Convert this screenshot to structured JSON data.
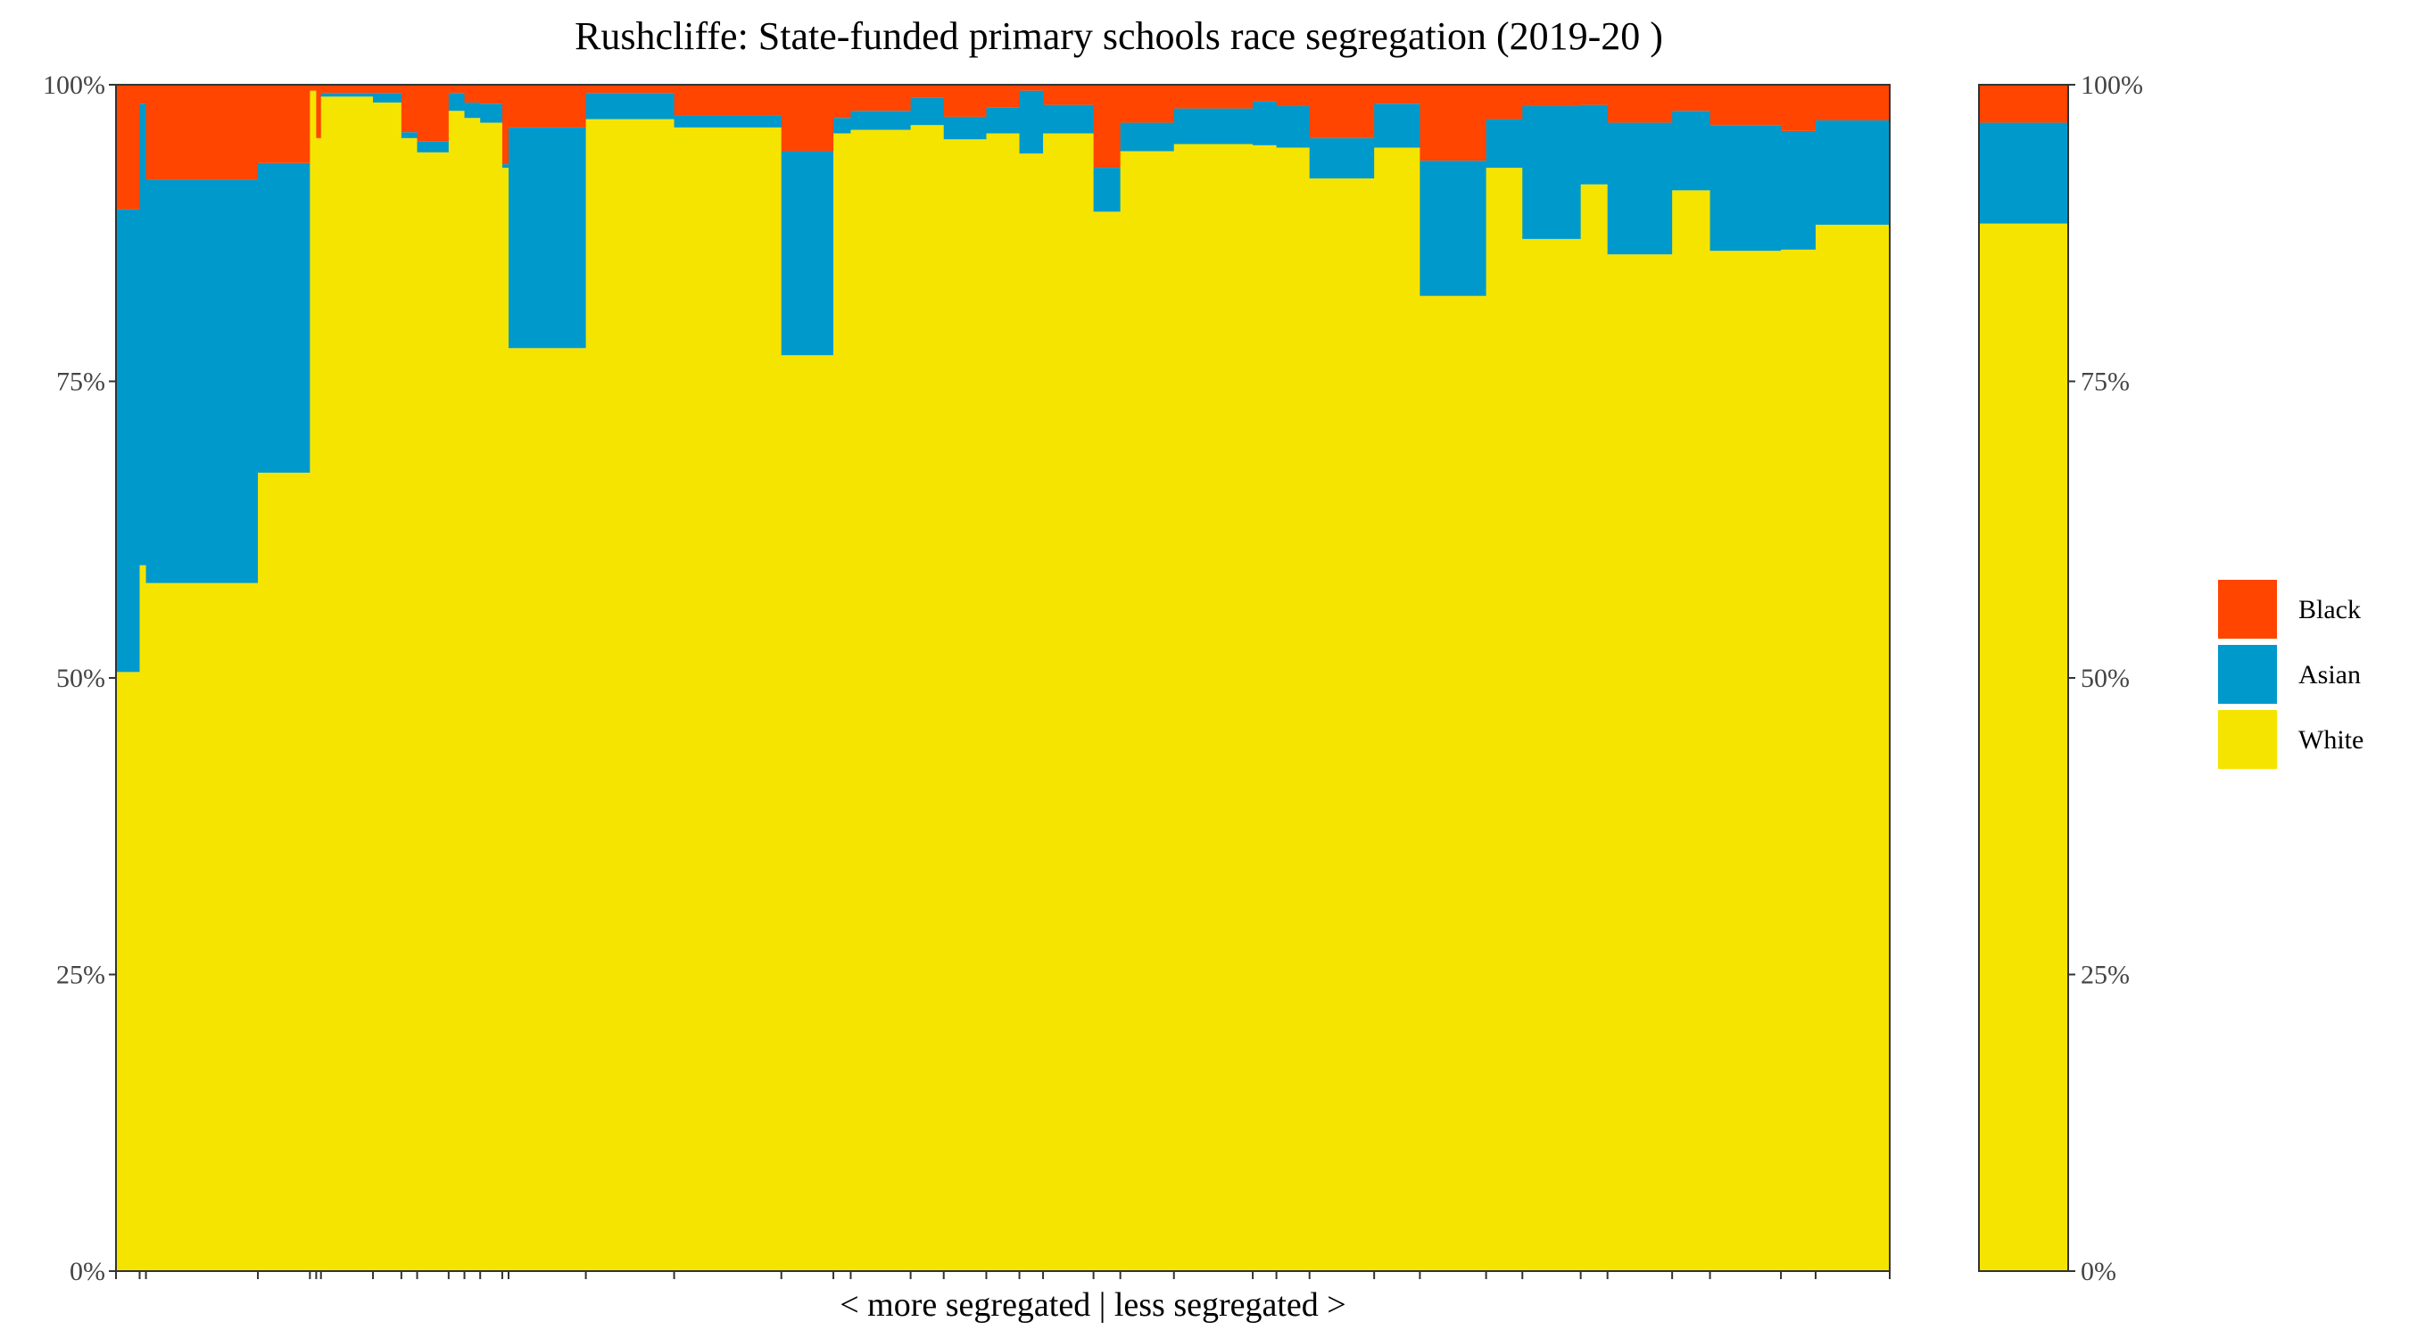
{
  "chart_data": {
    "type": "bar",
    "subtype": "stacked-100-variable-width",
    "title": "Rushcliffe: State-funded primary schools race segregation (2019-20 )",
    "xlabel": "< more segregated | less segregated >",
    "ylabel": "",
    "ylim": [
      0,
      100
    ],
    "y_ticks": [
      "0%",
      "25%",
      "50%",
      "75%",
      "100%"
    ],
    "grid": false,
    "legend_position": "right",
    "colors": {
      "White": "#F5E400",
      "Asian": "#0099CC",
      "Black": "#FF4500"
    },
    "legend": [
      {
        "name": "Black",
        "color": "#FF4500"
      },
      {
        "name": "Asian",
        "color": "#0099CC"
      },
      {
        "name": "White",
        "color": "#F5E400"
      }
    ],
    "series_order": [
      "White",
      "Asian",
      "Black"
    ],
    "schools": [
      {
        "width": 15,
        "white": 50.5,
        "asian": 39.0,
        "black": 10.5
      },
      {
        "width": 4,
        "white": 59.5,
        "asian": 38.9,
        "black": 1.6
      },
      {
        "width": 71,
        "white": 58.0,
        "asian": 34.0,
        "black": 8.0
      },
      {
        "width": 33,
        "white": 67.3,
        "asian": 26.1,
        "black": 6.6
      },
      {
        "width": 4,
        "white": 99.5,
        "asian": 0.0,
        "black": 0.5
      },
      {
        "width": 3,
        "white": 95.5,
        "asian": 0.0,
        "black": 4.5
      },
      {
        "width": 33,
        "white": 99.0,
        "asian": 0.3,
        "black": 0.7
      },
      {
        "width": 18,
        "white": 98.5,
        "asian": 0.8,
        "black": 0.7
      },
      {
        "width": 10,
        "white": 95.5,
        "asian": 0.5,
        "black": 4.0
      },
      {
        "width": 20,
        "white": 94.3,
        "asian": 0.9,
        "black": 4.8
      },
      {
        "width": 10,
        "white": 97.8,
        "asian": 1.5,
        "black": 0.7
      },
      {
        "width": 10,
        "white": 97.2,
        "asian": 1.3,
        "black": 1.5
      },
      {
        "width": 14,
        "white": 96.8,
        "asian": 1.6,
        "black": 1.6
      },
      {
        "width": 4,
        "white": 93.0,
        "asian": 0.3,
        "black": 6.7
      },
      {
        "width": 49,
        "white": 77.8,
        "asian": 18.6,
        "black": 3.6
      },
      {
        "width": 56,
        "white": 97.1,
        "asian": 2.2,
        "black": 0.7
      },
      {
        "width": 68,
        "white": 96.4,
        "asian": 1.0,
        "black": 2.6
      },
      {
        "width": 33,
        "white": 77.2,
        "asian": 17.2,
        "black": 5.6
      },
      {
        "width": 11,
        "white": 95.9,
        "asian": 1.3,
        "black": 2.8
      },
      {
        "width": 38,
        "white": 96.2,
        "asian": 1.6,
        "black": 2.2
      },
      {
        "width": 21,
        "white": 96.6,
        "asian": 2.3,
        "black": 1.1
      },
      {
        "width": 27,
        "white": 95.4,
        "asian": 1.9,
        "black": 2.7
      },
      {
        "width": 21,
        "white": 95.9,
        "asian": 2.2,
        "black": 1.9
      },
      {
        "width": 15,
        "white": 94.2,
        "asian": 5.3,
        "black": 0.5
      },
      {
        "width": 32,
        "white": 95.9,
        "asian": 2.4,
        "black": 1.7
      },
      {
        "width": 17,
        "white": 89.3,
        "asian": 3.7,
        "black": 7.0
      },
      {
        "width": 34,
        "white": 94.4,
        "asian": 2.4,
        "black": 3.2
      },
      {
        "width": 50,
        "white": 95.0,
        "asian": 3.0,
        "black": 2.0
      },
      {
        "width": 15,
        "white": 94.9,
        "asian": 3.7,
        "black": 1.4
      },
      {
        "width": 21,
        "white": 94.7,
        "asian": 3.5,
        "black": 1.8
      },
      {
        "width": 41,
        "white": 92.1,
        "asian": 3.4,
        "black": 4.5
      },
      {
        "width": 29,
        "white": 94.7,
        "asian": 3.7,
        "black": 1.6
      },
      {
        "width": 42,
        "white": 82.2,
        "asian": 11.4,
        "black": 6.4
      },
      {
        "width": 23,
        "white": 93.0,
        "asian": 4.1,
        "black": 2.9
      },
      {
        "width": 37,
        "white": 87.0,
        "asian": 11.2,
        "black": 1.8
      },
      {
        "width": 17,
        "white": 91.6,
        "asian": 6.7,
        "black": 1.7
      },
      {
        "width": 41,
        "white": 85.7,
        "asian": 11.1,
        "black": 3.2
      },
      {
        "width": 24,
        "white": 91.1,
        "asian": 6.7,
        "black": 2.2
      },
      {
        "width": 45,
        "white": 86.0,
        "asian": 10.6,
        "black": 3.4
      },
      {
        "width": 22,
        "white": 86.1,
        "asian": 10.0,
        "black": 3.9
      },
      {
        "width": 47,
        "white": 88.2,
        "asian": 8.8,
        "black": 3.0
      }
    ],
    "overall": {
      "white": 88.3,
      "asian": 8.5,
      "black": 3.2
    }
  }
}
